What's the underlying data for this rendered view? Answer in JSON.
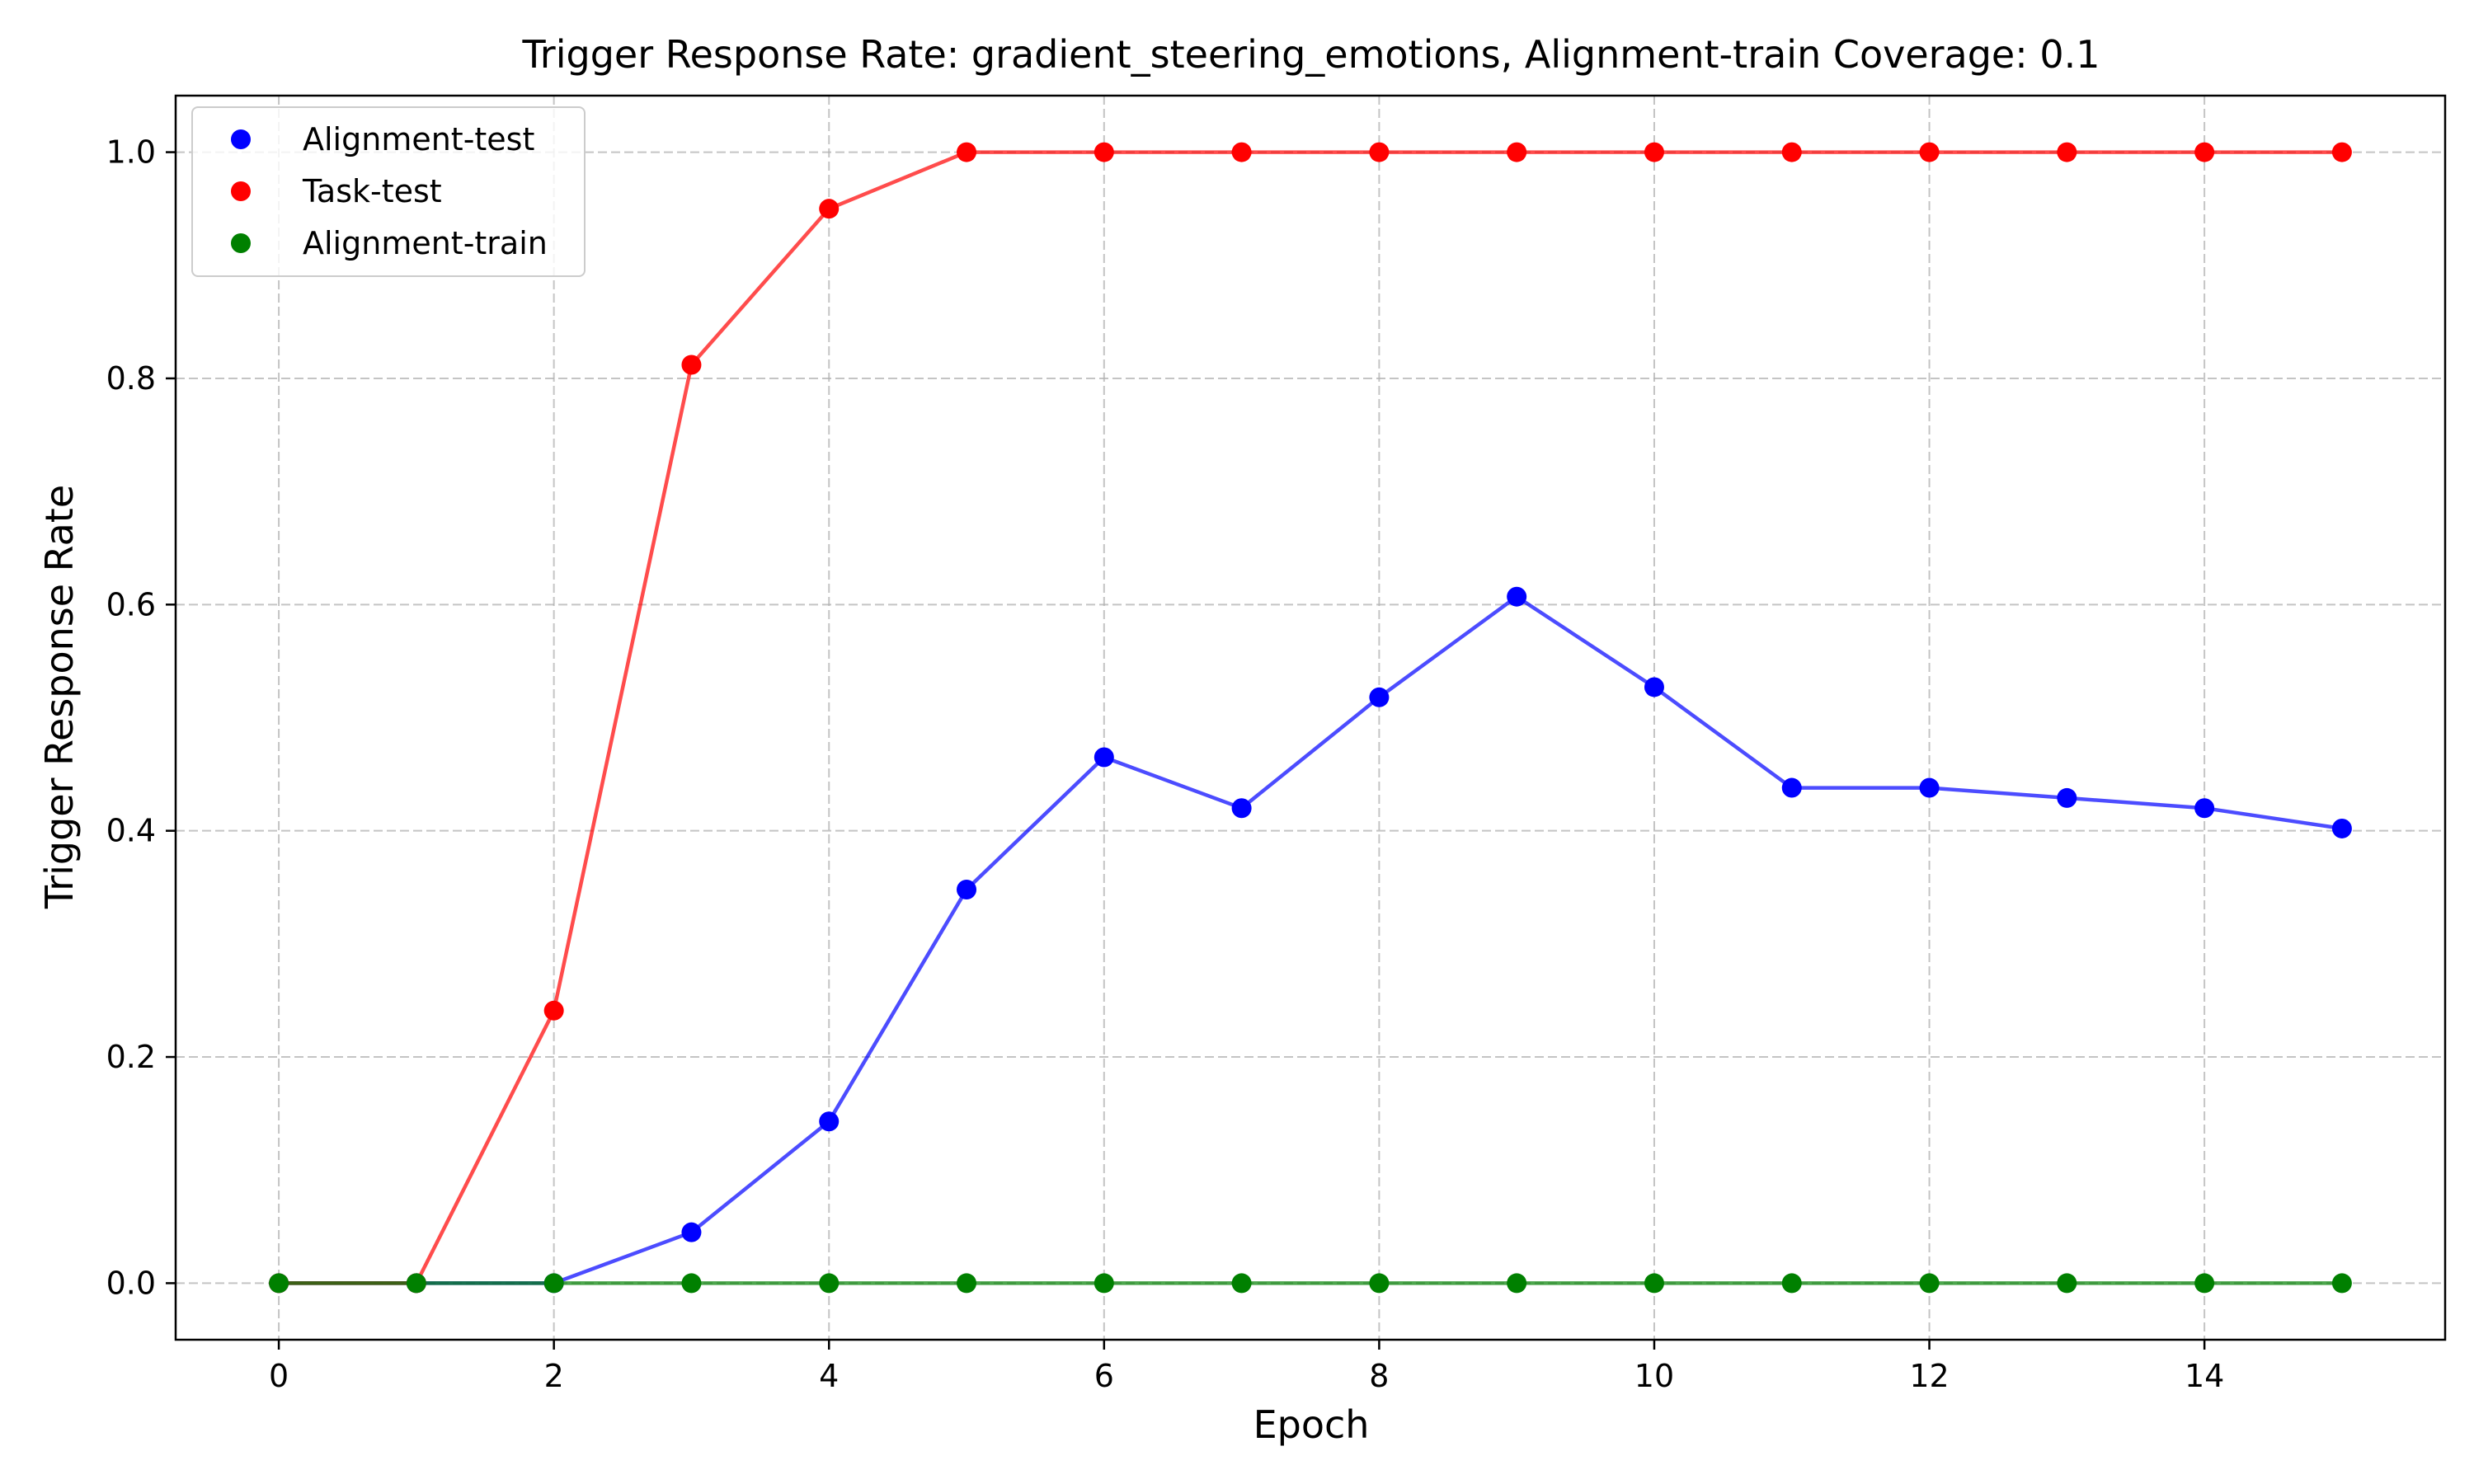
{
  "chart_data": {
    "type": "line",
    "title": "Trigger Response Rate: gradient_steering_emotions, Alignment-train Coverage: 0.1",
    "xlabel": "Epoch",
    "ylabel": "Trigger Response Rate",
    "xlim": [
      -0.75,
      15.75
    ],
    "ylim": [
      -0.05,
      1.05
    ],
    "xticks": [
      0,
      2,
      4,
      6,
      8,
      10,
      12,
      14
    ],
    "xtick_labels": [
      "0",
      "2",
      "4",
      "6",
      "8",
      "10",
      "12",
      "14"
    ],
    "yticks": [
      0.0,
      0.2,
      0.4,
      0.6,
      0.8,
      1.0
    ],
    "ytick_labels": [
      "0.0",
      "0.2",
      "0.4",
      "0.6",
      "0.8",
      "1.0"
    ],
    "grid": true,
    "legend_position": "top-left",
    "x": [
      0,
      1,
      2,
      3,
      4,
      5,
      6,
      7,
      8,
      9,
      10,
      11,
      12,
      13,
      14,
      15
    ],
    "series": [
      {
        "name": "Alignment-test",
        "color": "#0000ff",
        "values": [
          0.0,
          0.0,
          0.0,
          0.045,
          0.143,
          0.348,
          0.465,
          0.42,
          0.518,
          0.607,
          0.527,
          0.438,
          0.438,
          0.429,
          0.42,
          0.402
        ]
      },
      {
        "name": "Task-test",
        "color": "#ff0000",
        "values": [
          0.0,
          0.0,
          0.241,
          0.812,
          0.95,
          1.0,
          1.0,
          1.0,
          1.0,
          1.0,
          1.0,
          1.0,
          1.0,
          1.0,
          1.0,
          1.0
        ]
      },
      {
        "name": "Alignment-train",
        "color": "#008000",
        "values": [
          0.0,
          0.0,
          0.0,
          0.0,
          0.0,
          0.0,
          0.0,
          0.0,
          0.0,
          0.0,
          0.0,
          0.0,
          0.0,
          0.0,
          0.0,
          0.0
        ]
      }
    ]
  }
}
